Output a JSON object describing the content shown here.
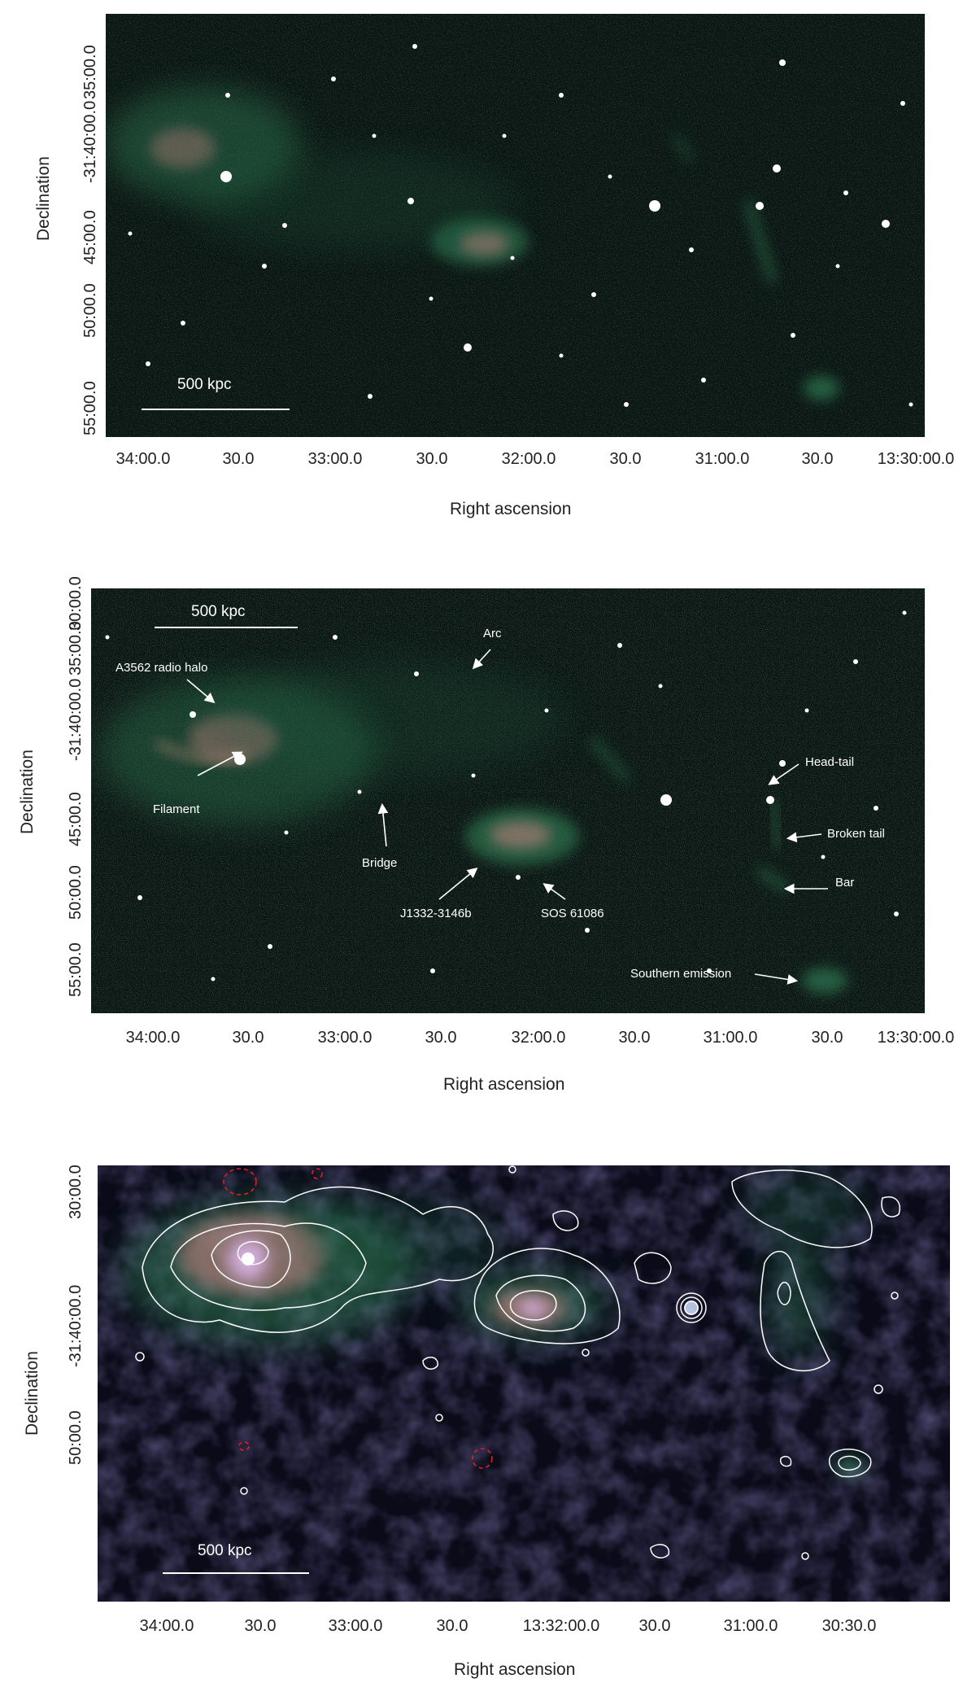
{
  "panels": [
    {
      "id": "top",
      "scale_bar": "500 kpc",
      "xlabel": "Right ascension",
      "ylabel": "Declination",
      "xticks": [
        "34:00.0",
        "30.0",
        "33:00.0",
        "30.0",
        "32:00.0",
        "30.0",
        "31:00.0",
        "30.0",
        "13:30:00.0"
      ],
      "yticks": [
        "55:00.0",
        "50:00.0",
        "45:00.0",
        "-31:40:00.0",
        "35:00.0"
      ]
    },
    {
      "id": "middle",
      "scale_bar": "500 kpc",
      "xlabel": "Right ascension",
      "ylabel": "Declination",
      "xticks": [
        "34:00.0",
        "30.0",
        "33:00.0",
        "30.0",
        "32:00.0",
        "30.0",
        "31:00.0",
        "30.0",
        "13:30:00.0"
      ],
      "yticks": [
        "55:00.0",
        "50:00.0",
        "45:00.0",
        "-31:40:00.0",
        "35:00.0",
        "30:00.0"
      ],
      "annotations": {
        "halo": "A3562 radio halo",
        "arc": "Arc",
        "filament": "Filament",
        "bridge": "Bridge",
        "j1332": "J1332-3146b",
        "sos": "SOS 61086",
        "headtail": "Head-tail",
        "broken": "Broken tail",
        "bar": "Bar",
        "southern": "Southern emission"
      }
    },
    {
      "id": "bottom",
      "scale_bar": "500 kpc",
      "xlabel": "Right ascension",
      "ylabel": "Declination",
      "xticks": [
        "34:00.0",
        "30.0",
        "33:00.0",
        "30.0",
        "13:32:00.0",
        "30.0",
        "31:00.0",
        "30:30.0"
      ],
      "yticks": [
        "50:00.0",
        "-31:40:00.0",
        "30:00.0"
      ]
    }
  ],
  "colors": {
    "background_dark": "#0b1512",
    "emission_green": "#2f7a52",
    "emission_pink": "#d98a8a",
    "contour": "#ffffff",
    "negative_contour": "#e02020"
  }
}
